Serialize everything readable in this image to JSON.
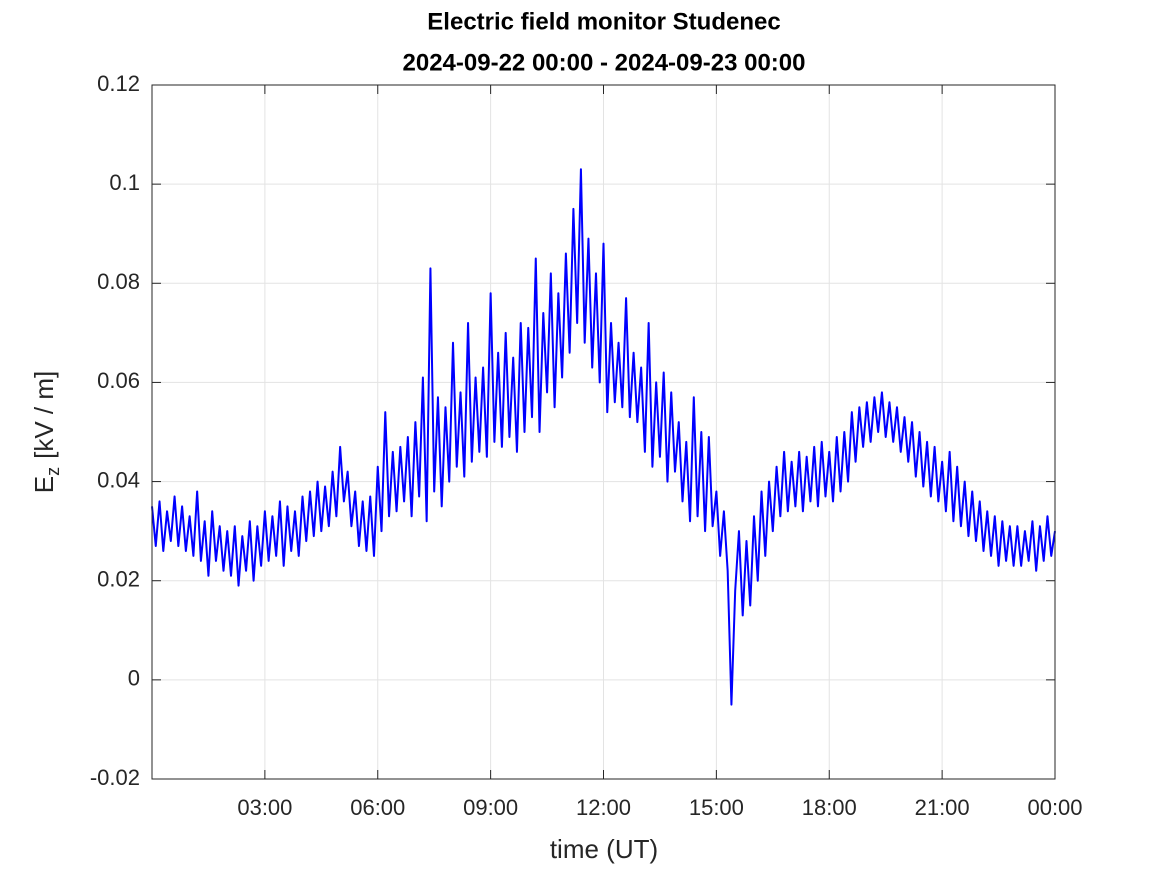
{
  "chart_data": {
    "type": "line",
    "title": [
      "Electric field monitor Studenec",
      "2024-09-22 00:00 - 2024-09-23 00:00"
    ],
    "xlabel": "time (UT)",
    "ylabel": {
      "main": "E",
      "sub": "z",
      "unit": "[kV / m]"
    },
    "color": "#0000ff",
    "grid": true,
    "xlim": [
      0,
      24
    ],
    "xticks": [
      {
        "value": 3,
        "label": "03:00"
      },
      {
        "value": 6,
        "label": "06:00"
      },
      {
        "value": 9,
        "label": "09:00"
      },
      {
        "value": 12,
        "label": "12:00"
      },
      {
        "value": 15,
        "label": "15:00"
      },
      {
        "value": 18,
        "label": "18:00"
      },
      {
        "value": 21,
        "label": "21:00"
      },
      {
        "value": 24,
        "label": "00:00"
      }
    ],
    "ylim": [
      -0.02,
      0.12
    ],
    "yticks": [
      -0.02,
      0,
      0.02,
      0.04,
      0.06,
      0.08,
      0.1,
      0.12
    ],
    "x": [
      0,
      0.1,
      0.2,
      0.3,
      0.4,
      0.5,
      0.6,
      0.7,
      0.8,
      0.9,
      1,
      1.1,
      1.2,
      1.3,
      1.4,
      1.5,
      1.6,
      1.7,
      1.8,
      1.9,
      2,
      2.1,
      2.2,
      2.3,
      2.4,
      2.5,
      2.6,
      2.7,
      2.8,
      2.9,
      3,
      3.1,
      3.2,
      3.3,
      3.4,
      3.5,
      3.6,
      3.7,
      3.8,
      3.9,
      4,
      4.1,
      4.2,
      4.3,
      4.4,
      4.5,
      4.6,
      4.7,
      4.8,
      4.9,
      5,
      5.1,
      5.2,
      5.3,
      5.4,
      5.5,
      5.6,
      5.7,
      5.8,
      5.9,
      6,
      6.1,
      6.2,
      6.3,
      6.4,
      6.5,
      6.6,
      6.7,
      6.8,
      6.9,
      7,
      7.1,
      7.2,
      7.3,
      7.4,
      7.5,
      7.6,
      7.7,
      7.8,
      7.9,
      8,
      8.1,
      8.2,
      8.3,
      8.4,
      8.5,
      8.6,
      8.7,
      8.8,
      8.9,
      9,
      9.1,
      9.2,
      9.3,
      9.4,
      9.5,
      9.6,
      9.7,
      9.8,
      9.9,
      10,
      10.1,
      10.2,
      10.3,
      10.4,
      10.5,
      10.6,
      10.7,
      10.8,
      10.9,
      11,
      11.1,
      11.2,
      11.3,
      11.4,
      11.5,
      11.6,
      11.7,
      11.8,
      11.9,
      12,
      12.1,
      12.2,
      12.3,
      12.4,
      12.5,
      12.6,
      12.7,
      12.8,
      12.9,
      13,
      13.1,
      13.2,
      13.3,
      13.4,
      13.5,
      13.6,
      13.7,
      13.8,
      13.9,
      14,
      14.1,
      14.2,
      14.3,
      14.4,
      14.5,
      14.6,
      14.7,
      14.8,
      14.9,
      15,
      15.1,
      15.2,
      15.3,
      15.4,
      15.5,
      15.6,
      15.7,
      15.8,
      15.9,
      16,
      16.1,
      16.2,
      16.3,
      16.4,
      16.5,
      16.6,
      16.7,
      16.8,
      16.9,
      17,
      17.1,
      17.2,
      17.3,
      17.4,
      17.5,
      17.6,
      17.7,
      17.8,
      17.9,
      18,
      18.1,
      18.2,
      18.3,
      18.4,
      18.5,
      18.6,
      18.7,
      18.8,
      18.9,
      19,
      19.1,
      19.2,
      19.3,
      19.4,
      19.5,
      19.6,
      19.7,
      19.8,
      19.9,
      20,
      20.1,
      20.2,
      20.3,
      20.4,
      20.5,
      20.6,
      20.7,
      20.8,
      20.9,
      21,
      21.1,
      21.2,
      21.3,
      21.4,
      21.5,
      21.6,
      21.7,
      21.8,
      21.9,
      22,
      22.1,
      22.2,
      22.3,
      22.4,
      22.5,
      22.6,
      22.7,
      22.8,
      22.9,
      23,
      23.1,
      23.2,
      23.3,
      23.4,
      23.5,
      23.6,
      23.7,
      23.8,
      23.9,
      24
    ],
    "values": [
      0.035,
      0.027,
      0.036,
      0.026,
      0.034,
      0.028,
      0.037,
      0.027,
      0.035,
      0.026,
      0.033,
      0.025,
      0.038,
      0.024,
      0.032,
      0.021,
      0.034,
      0.024,
      0.031,
      0.022,
      0.03,
      0.021,
      0.031,
      0.019,
      0.029,
      0.022,
      0.032,
      0.02,
      0.031,
      0.023,
      0.034,
      0.024,
      0.033,
      0.025,
      0.036,
      0.023,
      0.035,
      0.026,
      0.034,
      0.025,
      0.037,
      0.028,
      0.038,
      0.029,
      0.04,
      0.03,
      0.039,
      0.031,
      0.042,
      0.033,
      0.047,
      0.036,
      0.042,
      0.031,
      0.038,
      0.027,
      0.036,
      0.026,
      0.037,
      0.025,
      0.043,
      0.03,
      0.054,
      0.033,
      0.046,
      0.034,
      0.047,
      0.036,
      0.049,
      0.033,
      0.052,
      0.037,
      0.061,
      0.032,
      0.083,
      0.038,
      0.057,
      0.035,
      0.055,
      0.04,
      0.068,
      0.043,
      0.058,
      0.041,
      0.072,
      0.044,
      0.061,
      0.046,
      0.063,
      0.045,
      0.078,
      0.048,
      0.066,
      0.047,
      0.07,
      0.049,
      0.065,
      0.046,
      0.072,
      0.05,
      0.071,
      0.053,
      0.085,
      0.05,
      0.074,
      0.058,
      0.082,
      0.055,
      0.078,
      0.061,
      0.086,
      0.066,
      0.095,
      0.072,
      0.103,
      0.068,
      0.089,
      0.063,
      0.082,
      0.06,
      0.088,
      0.054,
      0.072,
      0.056,
      0.068,
      0.055,
      0.077,
      0.053,
      0.066,
      0.052,
      0.063,
      0.046,
      0.072,
      0.043,
      0.06,
      0.045,
      0.062,
      0.04,
      0.058,
      0.042,
      0.052,
      0.036,
      0.048,
      0.032,
      0.057,
      0.033,
      0.05,
      0.03,
      0.049,
      0.031,
      0.038,
      0.025,
      0.034,
      0.022,
      -0.005,
      0.018,
      0.03,
      0.013,
      0.028,
      0.015,
      0.033,
      0.02,
      0.038,
      0.025,
      0.04,
      0.03,
      0.043,
      0.033,
      0.046,
      0.034,
      0.044,
      0.035,
      0.046,
      0.034,
      0.045,
      0.036,
      0.047,
      0.035,
      0.048,
      0.037,
      0.046,
      0.036,
      0.049,
      0.038,
      0.05,
      0.04,
      0.054,
      0.044,
      0.055,
      0.047,
      0.056,
      0.048,
      0.057,
      0.05,
      0.058,
      0.049,
      0.056,
      0.048,
      0.055,
      0.046,
      0.053,
      0.044,
      0.052,
      0.041,
      0.05,
      0.039,
      0.048,
      0.037,
      0.047,
      0.036,
      0.044,
      0.034,
      0.046,
      0.032,
      0.043,
      0.031,
      0.04,
      0.029,
      0.038,
      0.028,
      0.036,
      0.026,
      0.034,
      0.025,
      0.033,
      0.023,
      0.032,
      0.024,
      0.031,
      0.023,
      0.031,
      0.023,
      0.03,
      0.024,
      0.032,
      0.022,
      0.031,
      0.024,
      0.033,
      0.025,
      0.03
    ]
  }
}
